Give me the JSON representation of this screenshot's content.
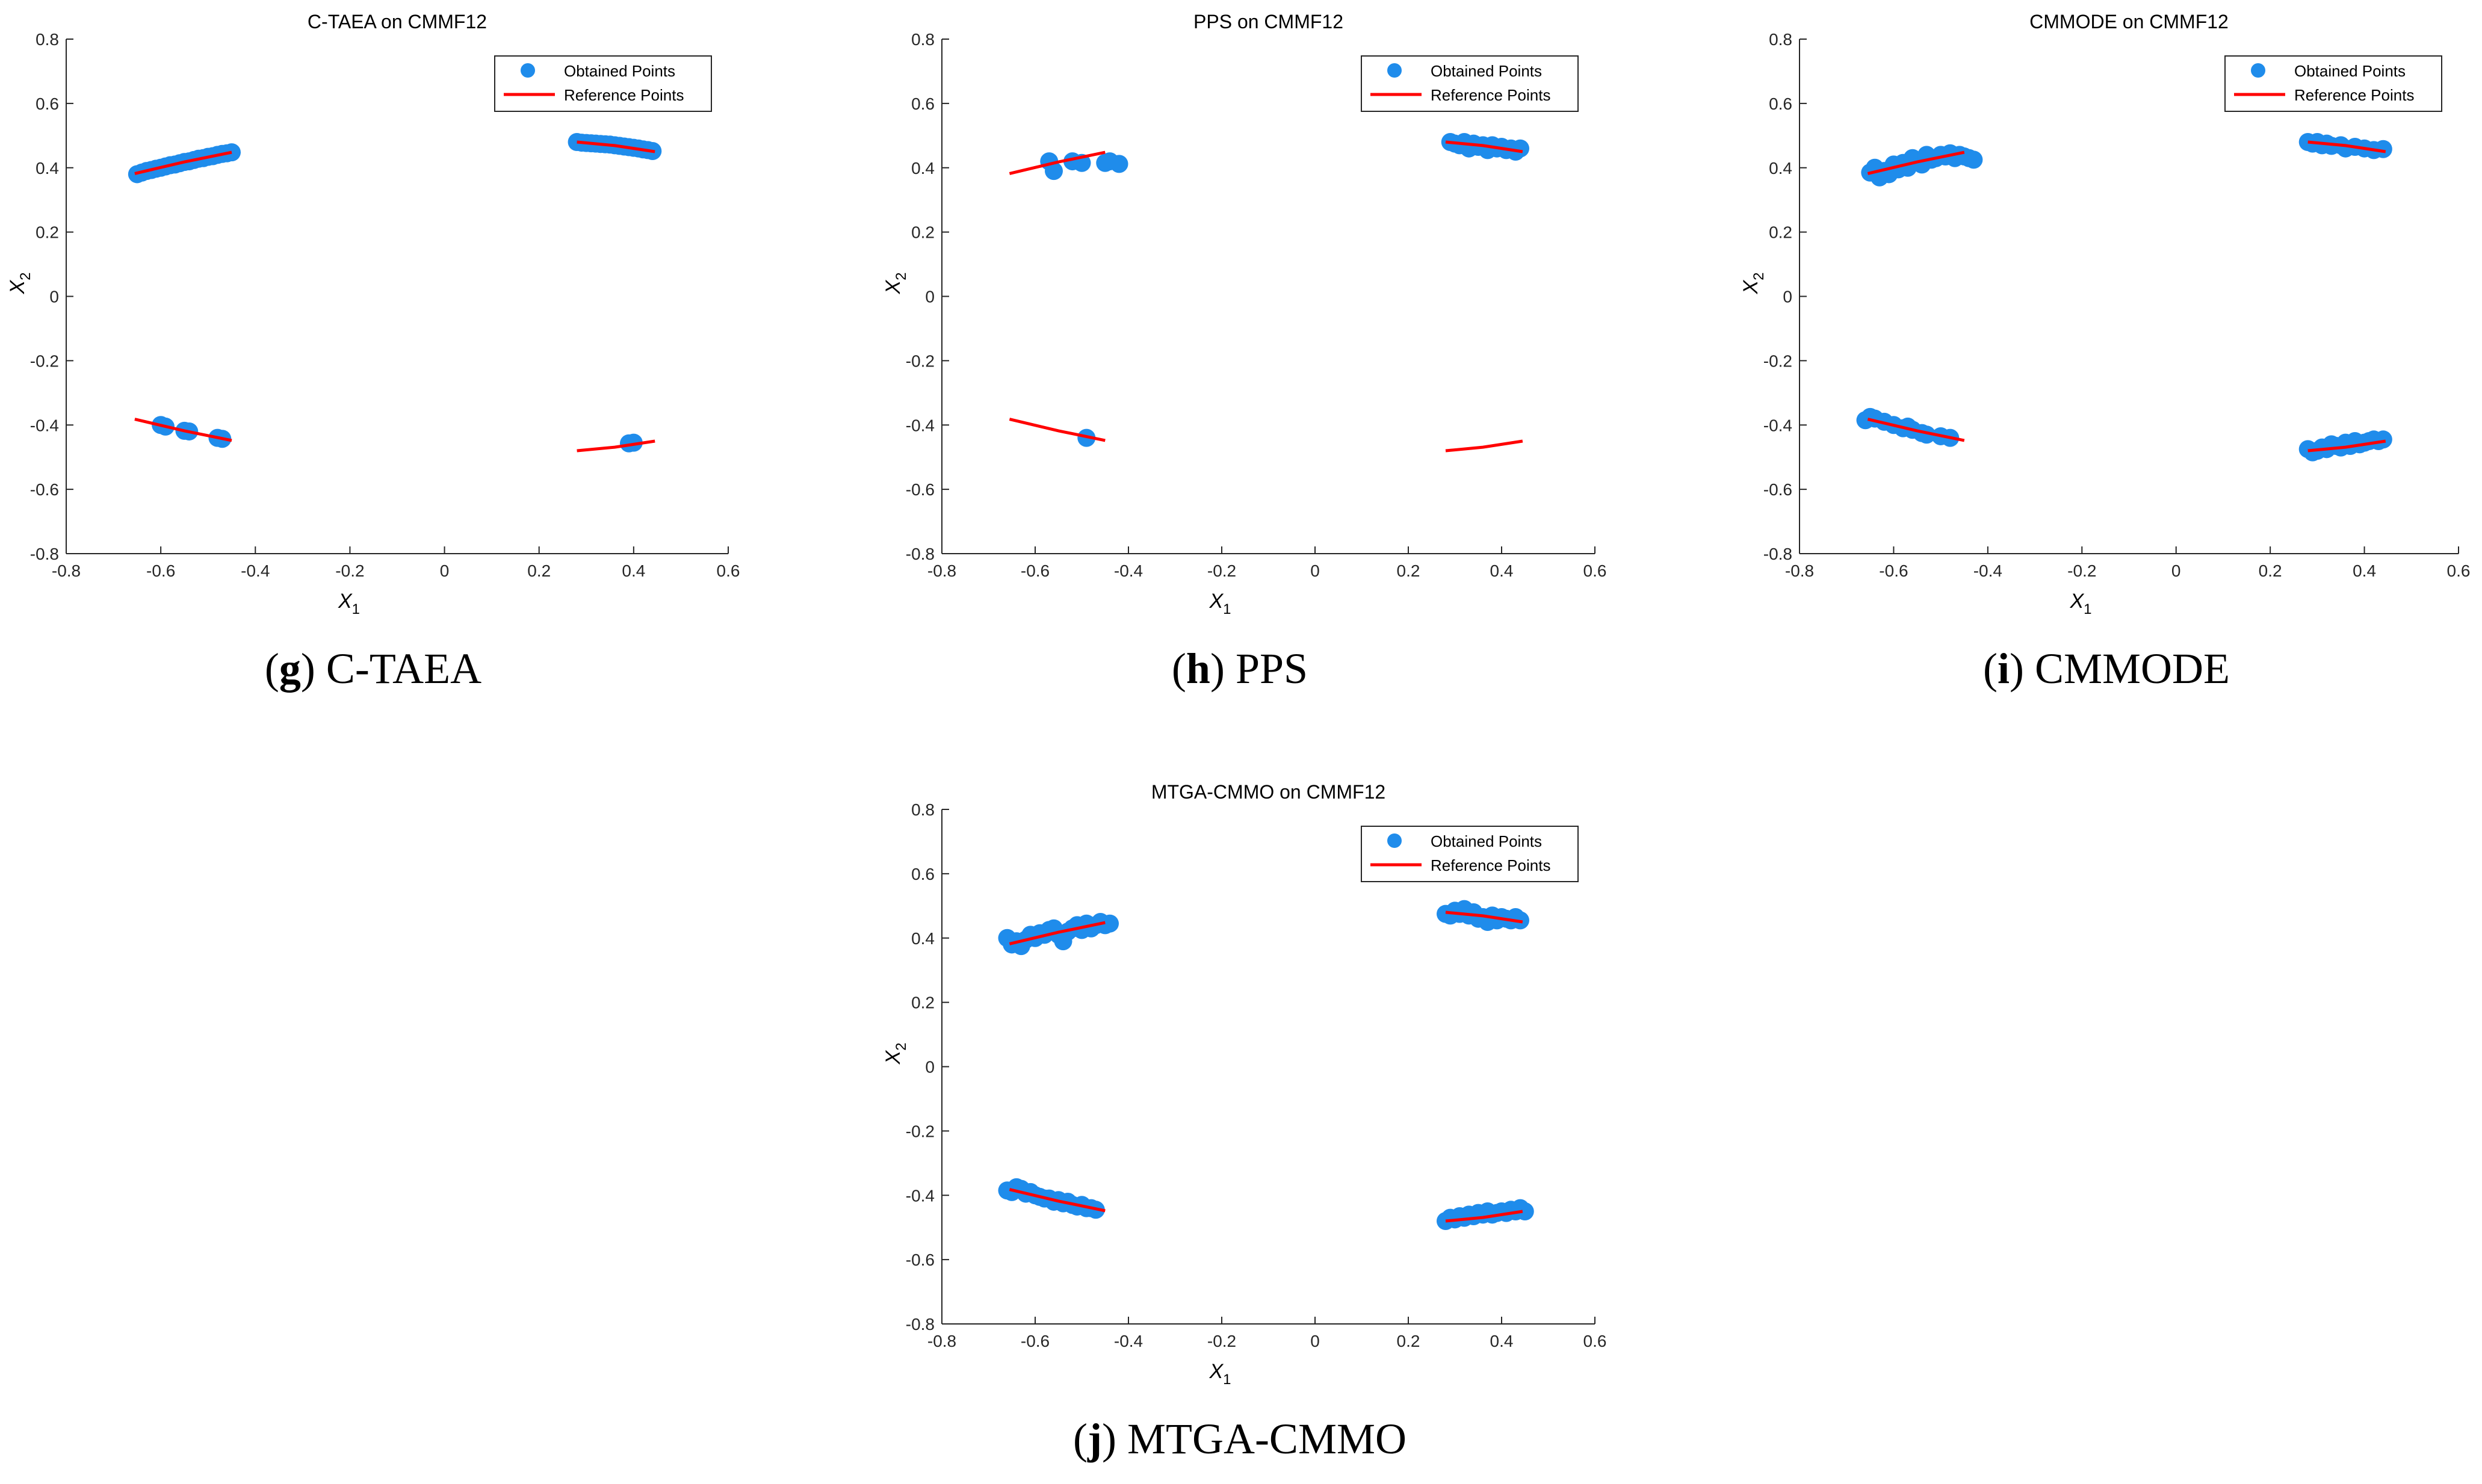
{
  "colors": {
    "obtained": "#1f8ceb",
    "reference": "#ff0000",
    "axis": "#262626"
  },
  "chart_data": [
    {
      "type": "scatter",
      "title": "C-TAEA on CMMF12",
      "xlabel": "X_1",
      "ylabel": "X_2",
      "xlim": [
        -0.8,
        0.6
      ],
      "ylim": [
        -0.8,
        0.8
      ],
      "xticks": [
        "-0.8",
        "-0.6",
        "-0.4",
        "-0.2",
        "0",
        "0.2",
        "0.4",
        "0.6"
      ],
      "yticks": [
        "-0.8",
        "-0.6",
        "-0.4",
        "-0.2",
        "0",
        "0.2",
        "0.4",
        "0.6",
        "0.8"
      ],
      "grid": false,
      "legend_position": "top-right",
      "legend": [
        "Obtained Points",
        "Reference Points"
      ],
      "caption": {
        "letter": "g",
        "method": "C-TAEA"
      },
      "reference_segments": [
        [
          [
            -0.655,
            0.382
          ],
          [
            -0.55,
            0.418
          ],
          [
            -0.45,
            0.448
          ]
        ],
        [
          [
            0.28,
            0.48
          ],
          [
            0.36,
            0.469
          ],
          [
            0.445,
            0.45
          ]
        ],
        [
          [
            -0.655,
            -0.382
          ],
          [
            -0.55,
            -0.418
          ],
          [
            -0.45,
            -0.448
          ]
        ],
        [
          [
            0.28,
            -0.48
          ],
          [
            0.36,
            -0.469
          ],
          [
            0.445,
            -0.45
          ]
        ]
      ],
      "points": [
        [
          -0.65,
          0.38
        ],
        [
          -0.64,
          0.385
        ],
        [
          -0.63,
          0.39
        ],
        [
          -0.62,
          0.393
        ],
        [
          -0.61,
          0.397
        ],
        [
          -0.6,
          0.4
        ],
        [
          -0.59,
          0.404
        ],
        [
          -0.58,
          0.408
        ],
        [
          -0.57,
          0.41
        ],
        [
          -0.56,
          0.414
        ],
        [
          -0.55,
          0.418
        ],
        [
          -0.54,
          0.42
        ],
        [
          -0.53,
          0.424
        ],
        [
          -0.52,
          0.428
        ],
        [
          -0.51,
          0.43
        ],
        [
          -0.5,
          0.434
        ],
        [
          -0.49,
          0.436
        ],
        [
          -0.48,
          0.44
        ],
        [
          -0.47,
          0.443
        ],
        [
          -0.46,
          0.445
        ],
        [
          -0.45,
          0.448
        ],
        [
          0.28,
          0.48
        ],
        [
          0.29,
          0.478
        ],
        [
          0.3,
          0.477
        ],
        [
          0.31,
          0.476
        ],
        [
          0.32,
          0.475
        ],
        [
          0.33,
          0.474
        ],
        [
          0.34,
          0.473
        ],
        [
          0.35,
          0.472
        ],
        [
          0.36,
          0.47
        ],
        [
          0.37,
          0.468
        ],
        [
          0.38,
          0.466
        ],
        [
          0.39,
          0.464
        ],
        [
          0.4,
          0.462
        ],
        [
          0.41,
          0.46
        ],
        [
          0.42,
          0.457
        ],
        [
          0.43,
          0.455
        ],
        [
          0.44,
          0.452
        ],
        [
          -0.6,
          -0.4
        ],
        [
          -0.59,
          -0.405
        ],
        [
          -0.55,
          -0.418
        ],
        [
          -0.54,
          -0.42
        ],
        [
          -0.48,
          -0.44
        ],
        [
          -0.47,
          -0.443
        ],
        [
          0.39,
          -0.457
        ],
        [
          0.4,
          -0.455
        ]
      ]
    },
    {
      "type": "scatter",
      "title": "PPS on CMMF12",
      "xlabel": "X_1",
      "ylabel": "X_2",
      "xlim": [
        -0.8,
        0.6
      ],
      "ylim": [
        -0.8,
        0.8
      ],
      "xticks": [
        "-0.8",
        "-0.6",
        "-0.4",
        "-0.2",
        "0",
        "0.2",
        "0.4",
        "0.6"
      ],
      "yticks": [
        "-0.8",
        "-0.6",
        "-0.4",
        "-0.2",
        "0",
        "0.2",
        "0.4",
        "0.6",
        "0.8"
      ],
      "grid": false,
      "legend_position": "top-right",
      "legend": [
        "Obtained Points",
        "Reference Points"
      ],
      "caption": {
        "letter": "h",
        "method": "PPS"
      },
      "reference_segments": [
        [
          [
            -0.655,
            0.382
          ],
          [
            -0.55,
            0.418
          ],
          [
            -0.45,
            0.448
          ]
        ],
        [
          [
            0.28,
            0.48
          ],
          [
            0.36,
            0.469
          ],
          [
            0.445,
            0.45
          ]
        ],
        [
          [
            -0.655,
            -0.382
          ],
          [
            -0.55,
            -0.418
          ],
          [
            -0.45,
            -0.448
          ]
        ],
        [
          [
            0.28,
            -0.48
          ],
          [
            0.36,
            -0.469
          ],
          [
            0.445,
            -0.45
          ]
        ]
      ],
      "points": [
        [
          -0.57,
          0.42
        ],
        [
          -0.56,
          0.39
        ],
        [
          -0.52,
          0.42
        ],
        [
          -0.5,
          0.415
        ],
        [
          -0.45,
          0.415
        ],
        [
          -0.44,
          0.42
        ],
        [
          -0.42,
          0.412
        ],
        [
          0.29,
          0.48
        ],
        [
          0.3,
          0.475
        ],
        [
          0.31,
          0.47
        ],
        [
          0.32,
          0.48
        ],
        [
          0.33,
          0.46
        ],
        [
          0.34,
          0.475
        ],
        [
          0.35,
          0.465
        ],
        [
          0.36,
          0.47
        ],
        [
          0.37,
          0.455
        ],
        [
          0.38,
          0.47
        ],
        [
          0.39,
          0.46
        ],
        [
          0.4,
          0.465
        ],
        [
          0.41,
          0.455
        ],
        [
          0.42,
          0.46
        ],
        [
          0.43,
          0.45
        ],
        [
          0.44,
          0.46
        ],
        [
          -0.49,
          -0.44
        ]
      ]
    },
    {
      "type": "scatter",
      "title": "CMMODE on CMMF12",
      "xlabel": "X_1",
      "ylabel": "X_2",
      "xlim": [
        -0.8,
        0.6
      ],
      "ylim": [
        -0.8,
        0.8
      ],
      "xticks": [
        "-0.8",
        "-0.6",
        "-0.4",
        "-0.2",
        "0",
        "0.2",
        "0.4",
        "0.6"
      ],
      "yticks": [
        "-0.8",
        "-0.6",
        "-0.4",
        "-0.2",
        "0",
        "0.2",
        "0.4",
        "0.6",
        "0.8"
      ],
      "grid": false,
      "legend_position": "top-right",
      "legend": [
        "Obtained Points",
        "Reference Points"
      ],
      "caption": {
        "letter": "i",
        "method": "CMMODE"
      },
      "reference_segments": [
        [
          [
            -0.655,
            0.382
          ],
          [
            -0.55,
            0.418
          ],
          [
            -0.45,
            0.448
          ]
        ],
        [
          [
            0.28,
            0.48
          ],
          [
            0.36,
            0.469
          ],
          [
            0.445,
            0.45
          ]
        ],
        [
          [
            -0.655,
            -0.382
          ],
          [
            -0.55,
            -0.418
          ],
          [
            -0.45,
            -0.448
          ]
        ],
        [
          [
            0.28,
            -0.48
          ],
          [
            0.36,
            -0.469
          ],
          [
            0.445,
            -0.45
          ]
        ]
      ],
      "points": [
        [
          -0.65,
          0.385
        ],
        [
          -0.64,
          0.4
        ],
        [
          -0.63,
          0.37
        ],
        [
          -0.62,
          0.39
        ],
        [
          -0.61,
          0.38
        ],
        [
          -0.6,
          0.41
        ],
        [
          -0.59,
          0.395
        ],
        [
          -0.58,
          0.415
        ],
        [
          -0.57,
          0.4
        ],
        [
          -0.56,
          0.43
        ],
        [
          -0.55,
          0.42
        ],
        [
          -0.54,
          0.41
        ],
        [
          -0.53,
          0.44
        ],
        [
          -0.52,
          0.425
        ],
        [
          -0.51,
          0.43
        ],
        [
          -0.5,
          0.44
        ],
        [
          -0.49,
          0.435
        ],
        [
          -0.48,
          0.445
        ],
        [
          -0.47,
          0.43
        ],
        [
          -0.46,
          0.44
        ],
        [
          -0.45,
          0.435
        ],
        [
          -0.44,
          0.43
        ],
        [
          -0.43,
          0.425
        ],
        [
          0.28,
          0.48
        ],
        [
          0.29,
          0.475
        ],
        [
          0.3,
          0.48
        ],
        [
          0.31,
          0.47
        ],
        [
          0.32,
          0.475
        ],
        [
          0.33,
          0.468
        ],
        [
          0.35,
          0.47
        ],
        [
          0.36,
          0.46
        ],
        [
          0.38,
          0.465
        ],
        [
          0.4,
          0.46
        ],
        [
          0.42,
          0.455
        ],
        [
          0.44,
          0.458
        ],
        [
          -0.66,
          -0.385
        ],
        [
          -0.65,
          -0.375
        ],
        [
          -0.64,
          -0.38
        ],
        [
          -0.62,
          -0.39
        ],
        [
          -0.6,
          -0.4
        ],
        [
          -0.58,
          -0.41
        ],
        [
          -0.57,
          -0.405
        ],
        [
          -0.56,
          -0.415
        ],
        [
          -0.54,
          -0.425
        ],
        [
          -0.53,
          -0.43
        ],
        [
          -0.5,
          -0.435
        ],
        [
          -0.48,
          -0.44
        ],
        [
          0.28,
          -0.475
        ],
        [
          0.29,
          -0.485
        ],
        [
          0.3,
          -0.48
        ],
        [
          0.31,
          -0.47
        ],
        [
          0.32,
          -0.475
        ],
        [
          0.33,
          -0.46
        ],
        [
          0.34,
          -0.465
        ],
        [
          0.35,
          -0.47
        ],
        [
          0.36,
          -0.455
        ],
        [
          0.37,
          -0.465
        ],
        [
          0.38,
          -0.45
        ],
        [
          0.39,
          -0.46
        ],
        [
          0.4,
          -0.455
        ],
        [
          0.41,
          -0.45
        ],
        [
          0.42,
          -0.445
        ],
        [
          0.43,
          -0.45
        ],
        [
          0.44,
          -0.445
        ]
      ]
    },
    {
      "type": "scatter",
      "title": "MTGA-CMMO on CMMF12",
      "xlabel": "X_1",
      "ylabel": "X_2",
      "xlim": [
        -0.8,
        0.6
      ],
      "ylim": [
        -0.8,
        0.8
      ],
      "xticks": [
        "-0.8",
        "-0.6",
        "-0.4",
        "-0.2",
        "0",
        "0.2",
        "0.4",
        "0.6"
      ],
      "yticks": [
        "-0.8",
        "-0.6",
        "-0.4",
        "-0.2",
        "0",
        "0.2",
        "0.4",
        "0.6",
        "0.8"
      ],
      "grid": false,
      "legend_position": "top-right",
      "legend": [
        "Obtained Points",
        "Reference Points"
      ],
      "caption": {
        "letter": "j",
        "method": "MTGA-CMMO"
      },
      "reference_segments": [
        [
          [
            -0.655,
            0.382
          ],
          [
            -0.55,
            0.418
          ],
          [
            -0.45,
            0.448
          ]
        ],
        [
          [
            0.28,
            0.48
          ],
          [
            0.36,
            0.469
          ],
          [
            0.445,
            0.45
          ]
        ],
        [
          [
            -0.655,
            -0.382
          ],
          [
            -0.55,
            -0.418
          ],
          [
            -0.45,
            -0.448
          ]
        ],
        [
          [
            0.28,
            -0.48
          ],
          [
            0.36,
            -0.469
          ],
          [
            0.445,
            -0.45
          ]
        ]
      ],
      "points": [
        [
          -0.66,
          0.4
        ],
        [
          -0.65,
          0.38
        ],
        [
          -0.64,
          0.39
        ],
        [
          -0.63,
          0.375
        ],
        [
          -0.62,
          0.395
        ],
        [
          -0.61,
          0.41
        ],
        [
          -0.6,
          0.4
        ],
        [
          -0.59,
          0.415
        ],
        [
          -0.58,
          0.41
        ],
        [
          -0.57,
          0.425
        ],
        [
          -0.56,
          0.43
        ],
        [
          -0.55,
          0.41
        ],
        [
          -0.54,
          0.39
        ],
        [
          -0.53,
          0.42
        ],
        [
          -0.52,
          0.43
        ],
        [
          -0.51,
          0.44
        ],
        [
          -0.5,
          0.425
        ],
        [
          -0.49,
          0.445
        ],
        [
          -0.48,
          0.43
        ],
        [
          -0.47,
          0.44
        ],
        [
          -0.46,
          0.45
        ],
        [
          -0.45,
          0.44
        ],
        [
          -0.44,
          0.445
        ],
        [
          0.28,
          0.475
        ],
        [
          0.29,
          0.47
        ],
        [
          0.3,
          0.485
        ],
        [
          0.31,
          0.475
        ],
        [
          0.32,
          0.49
        ],
        [
          0.33,
          0.47
        ],
        [
          0.34,
          0.48
        ],
        [
          0.35,
          0.46
        ],
        [
          0.36,
          0.465
        ],
        [
          0.37,
          0.45
        ],
        [
          0.38,
          0.47
        ],
        [
          0.39,
          0.455
        ],
        [
          0.4,
          0.465
        ],
        [
          0.41,
          0.46
        ],
        [
          0.42,
          0.455
        ],
        [
          0.43,
          0.465
        ],
        [
          0.44,
          0.455
        ],
        [
          -0.66,
          -0.385
        ],
        [
          -0.65,
          -0.39
        ],
        [
          -0.64,
          -0.375
        ],
        [
          -0.63,
          -0.38
        ],
        [
          -0.62,
          -0.395
        ],
        [
          -0.61,
          -0.39
        ],
        [
          -0.6,
          -0.4
        ],
        [
          -0.59,
          -0.405
        ],
        [
          -0.58,
          -0.41
        ],
        [
          -0.57,
          -0.41
        ],
        [
          -0.56,
          -0.42
        ],
        [
          -0.55,
          -0.415
        ],
        [
          -0.54,
          -0.425
        ],
        [
          -0.53,
          -0.42
        ],
        [
          -0.52,
          -0.43
        ],
        [
          -0.51,
          -0.435
        ],
        [
          -0.5,
          -0.43
        ],
        [
          -0.49,
          -0.44
        ],
        [
          -0.48,
          -0.44
        ],
        [
          -0.47,
          -0.445
        ],
        [
          0.28,
          -0.48
        ],
        [
          0.29,
          -0.47
        ],
        [
          0.3,
          -0.475
        ],
        [
          0.31,
          -0.465
        ],
        [
          0.32,
          -0.47
        ],
        [
          0.33,
          -0.46
        ],
        [
          0.34,
          -0.465
        ],
        [
          0.35,
          -0.455
        ],
        [
          0.36,
          -0.46
        ],
        [
          0.37,
          -0.45
        ],
        [
          0.38,
          -0.46
        ],
        [
          0.39,
          -0.455
        ],
        [
          0.4,
          -0.45
        ],
        [
          0.41,
          -0.455
        ],
        [
          0.42,
          -0.445
        ],
        [
          0.43,
          -0.45
        ],
        [
          0.44,
          -0.44
        ],
        [
          0.45,
          -0.45
        ]
      ]
    }
  ]
}
